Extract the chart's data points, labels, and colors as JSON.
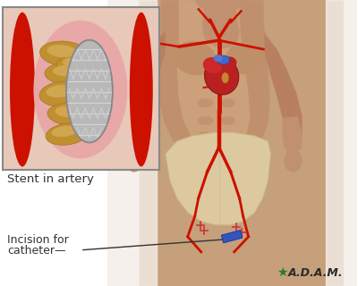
{
  "bg_color": "#ffffff",
  "body_skin_light": "#c8a07a",
  "body_skin_mid": "#b8906a",
  "body_skin_dark": "#a07858",
  "artery_red": "#cc1100",
  "artery_dark": "#991100",
  "underwear_color": "#ddc9a0",
  "underwear_edge": "#c8b48a",
  "inset_bg": "#f2dede",
  "inset_border": "#bbbbbb",
  "inset_artery_red": "#cc1100",
  "inset_wall_pink": "#e8b0b0",
  "plaque_gold": "#c09030",
  "plaque_light": "#d8b060",
  "stent_wire": "#d0d0d0",
  "stent_dark": "#a0a0a0",
  "heart_red": "#cc2222",
  "heart_dark": "#882222",
  "heart_blue": "#4466cc",
  "gray_triangle": "#cccccc",
  "label_color": "#333333",
  "adam_green": "#2a7a2a",
  "label1": "Stent in artery",
  "label2_line1": "Incision for",
  "label2_line2": "catheter",
  "adam_text": "A.D.A.M.",
  "catheter_blue": "#3355bb",
  "suture_red": "#cc3333",
  "white_bg": "#f5f0eb"
}
